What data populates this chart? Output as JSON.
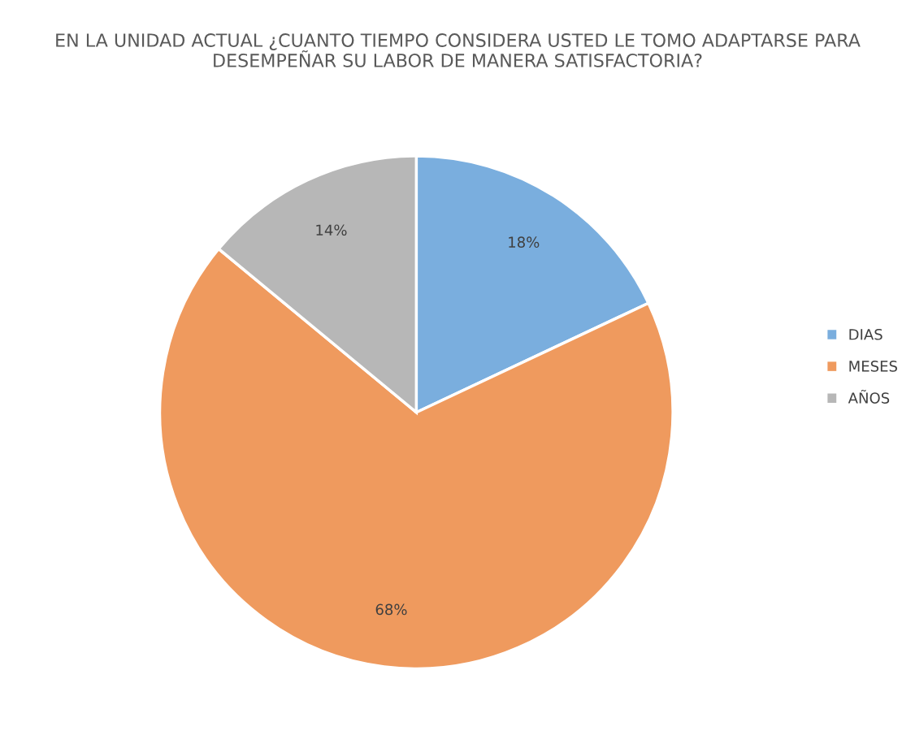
{
  "chart_data": {
    "type": "pie",
    "title": "EN LA UNIDAD ACTUAL ¿CUANTO TIEMPO CONSIDERA USTED LE TOMO ADAPTARSE PARA DESEMPEÑAR SU LABOR DE MANERA SATISFACTORIA?",
    "categories": [
      "DIAS",
      "MESES",
      "AÑOS"
    ],
    "values": [
      18,
      68,
      14
    ],
    "colors": [
      "#7aaede",
      "#ef9a5e",
      "#b7b7b7"
    ],
    "value_labels": [
      "18%",
      "68%",
      "14%"
    ],
    "legend": "right"
  }
}
